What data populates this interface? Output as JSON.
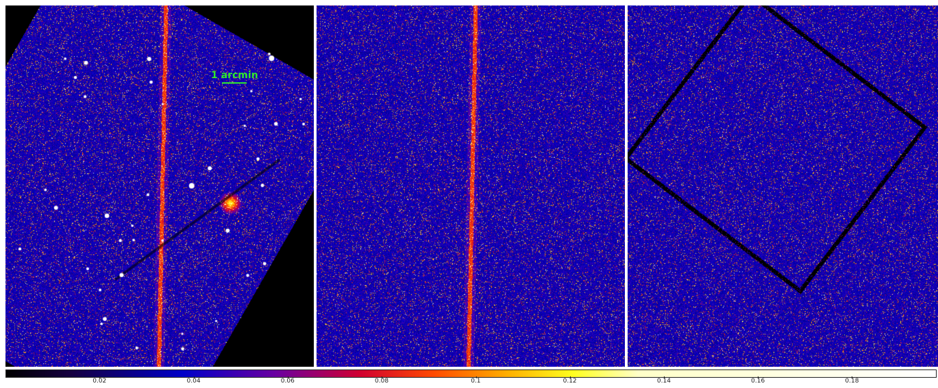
{
  "scale_bar": {
    "label": "1 arcmin",
    "color": "#2ee82e"
  },
  "colorbar": {
    "colormap": "gnuplot-like (black-blue-red-yellow-white)",
    "range": [
      0.0,
      0.198
    ],
    "ticks": [
      "0.02",
      "0.04",
      "0.06",
      "0.08",
      "0.1",
      "0.12",
      "0.14",
      "0.16",
      "0.18"
    ]
  },
  "panels": [
    {
      "name": "left-image",
      "content": "counts map with point sources and extended diffuse source"
    },
    {
      "name": "middle-image",
      "content": "model/background map"
    },
    {
      "name": "right-image",
      "content": "residual-like map"
    }
  ]
}
